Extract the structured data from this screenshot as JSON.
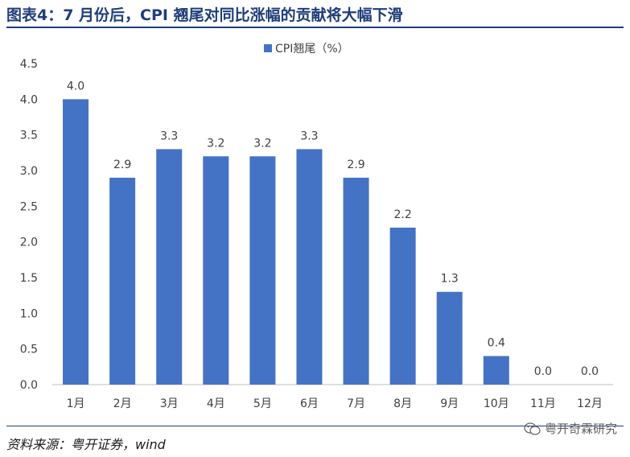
{
  "header": {
    "title": "图表4：7 月份后，CPI 翘尾对同比涨幅的贡献将大幅下滑"
  },
  "footer": {
    "source": "资料来源：粤开证券，wind",
    "watermark": "粤开奇霖研究"
  },
  "colors": {
    "bar": "#4472c4",
    "title": "#1f3d7a",
    "axis": "#bfbfbf"
  },
  "chart_data": {
    "type": "bar",
    "categories": [
      "1月",
      "2月",
      "3月",
      "4月",
      "5月",
      "6月",
      "7月",
      "8月",
      "9月",
      "10月",
      "11月",
      "12月"
    ],
    "series": [
      {
        "name": "CPI翘尾（%）",
        "values": [
          4.0,
          2.9,
          3.3,
          3.2,
          3.2,
          3.3,
          2.9,
          2.2,
          1.3,
          0.4,
          0.0,
          0.0
        ]
      }
    ],
    "data_labels": [
      "4.0",
      "2.9",
      "3.3",
      "3.2",
      "3.2",
      "3.3",
      "2.9",
      "2.2",
      "1.3",
      "0.4",
      "0.0",
      "0.0"
    ],
    "yticks": [
      "0.0",
      "0.5",
      "1.0",
      "1.5",
      "2.0",
      "2.5",
      "3.0",
      "3.5",
      "4.0",
      "4.5"
    ],
    "ylim": [
      0,
      4.5
    ],
    "legend_position": "top-center",
    "grid": false
  }
}
